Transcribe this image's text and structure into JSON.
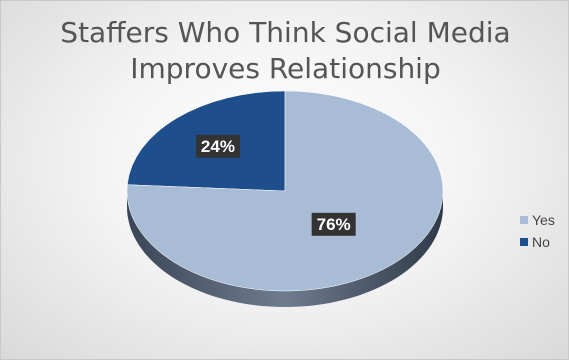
{
  "chart_data": {
    "type": "pie",
    "title": "Staffers Who Think Social Media Improves Relationship",
    "title_lines": [
      "Staffers Who Think Social Media",
      "Improves Relationship"
    ],
    "slices": [
      {
        "name": "No",
        "value": 24,
        "label": "24%",
        "color": "#1f4e8c"
      },
      {
        "name": "Yes",
        "value": 76,
        "label": "76%",
        "color": "#a9bcd6"
      }
    ],
    "legend": {
      "placement": "right",
      "entries": [
        {
          "name": "Yes",
          "color": "#a9bcd6"
        },
        {
          "name": "No",
          "color": "#1f4e8c"
        }
      ]
    },
    "style": {
      "3d": true,
      "data_label_background": "#333333",
      "data_label_color": "#ffffff"
    }
  }
}
